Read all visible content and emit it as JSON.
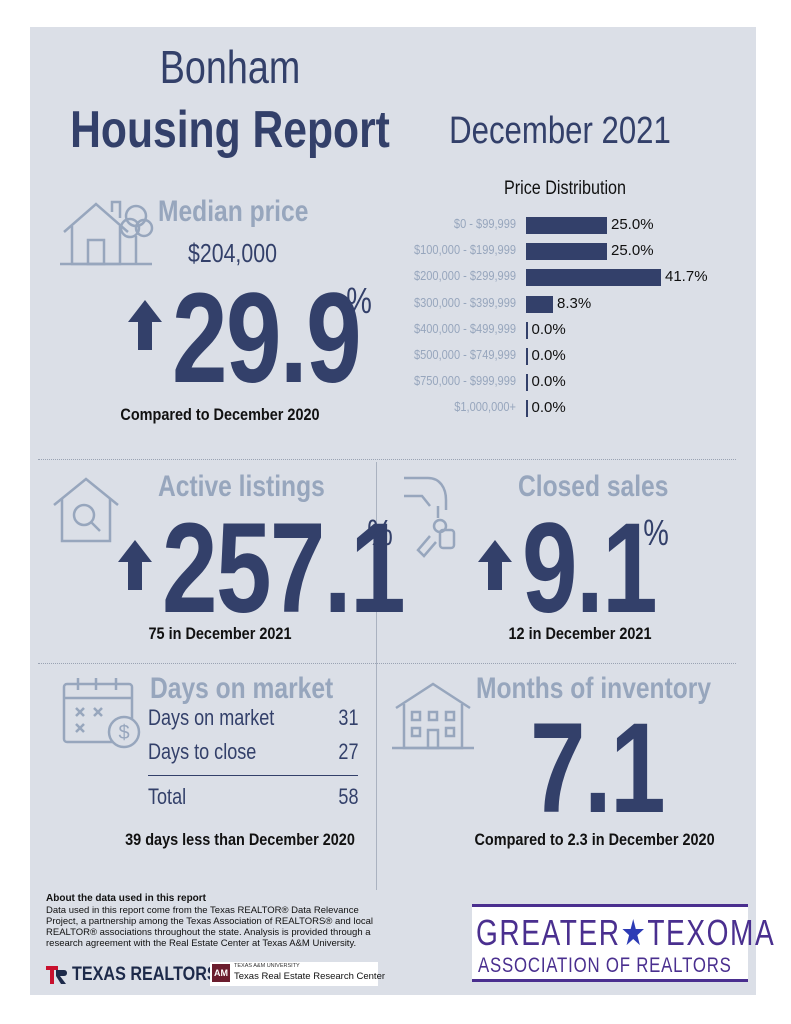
{
  "header": {
    "city": "Bonham",
    "title": "Housing Report",
    "month": "December 2021"
  },
  "median": {
    "label": "Median price",
    "price": "$204,000",
    "change": "29.9",
    "pct": "%",
    "compare": "Compared to December 2020"
  },
  "price_distribution": {
    "title": "Price Distribution"
  },
  "chart_data": {
    "type": "bar",
    "title": "Price Distribution",
    "orientation": "horizontal",
    "categories": [
      "$0 - $99,999",
      "$100,000 - $199,999",
      "$200,000 - $299,999",
      "$300,000 - $399,999",
      "$400,000 - $499,999",
      "$500,000 - $749,999",
      "$750,000 - $999,999",
      "$1,000,000+"
    ],
    "values": [
      25.0,
      25.0,
      41.7,
      8.3,
      0.0,
      0.0,
      0.0,
      0.0
    ],
    "value_labels": [
      "25.0%",
      "25.0%",
      "41.7%",
      "8.3%",
      "0.0%",
      "0.0%",
      "0.0%",
      "0.0%"
    ],
    "bar_color": "#33406a"
  },
  "active": {
    "label": "Active listings",
    "change": "257.1",
    "pct": "%",
    "sub": "75 in December 2021"
  },
  "closed": {
    "label": "Closed sales",
    "change": "9.1",
    "pct": "%",
    "sub": "12 in December 2021"
  },
  "days": {
    "label": "Days on market",
    "rows": [
      {
        "label": "Days on market",
        "value": "31"
      },
      {
        "label": "Days to close",
        "value": "27"
      }
    ],
    "total_label": "Total",
    "total_value": "58",
    "sub": "39 days less than December 2020"
  },
  "inventory": {
    "label": "Months of inventory",
    "value": "7.1",
    "sub": "Compared to 2.3 in December 2020"
  },
  "footer": {
    "about_title": "About the data used in this report",
    "about_text": "Data used in this report come from the Texas REALTOR® Data Relevance Project, a partnership among the Texas Association of REALTORS® and local REALTOR® associations throughout the state. Analysis is provided through a research agreement with the Real Estate Center at Texas A&M University.",
    "texas_realtors": "TEXAS REALTORS",
    "tamu_small": "TEXAS A&M UNIVERSITY",
    "tamu_center": "Texas Real Estate Research Center",
    "gt_line1_a": "GREATER",
    "gt_line1_b": "TEXOMA",
    "gt_line2": "ASSOCIATION OF REALTORS"
  },
  "colors": {
    "navy": "#33406a",
    "muted": "#97a6bd",
    "panel": "#dbdfe7",
    "purple": "#4a2f8f"
  }
}
